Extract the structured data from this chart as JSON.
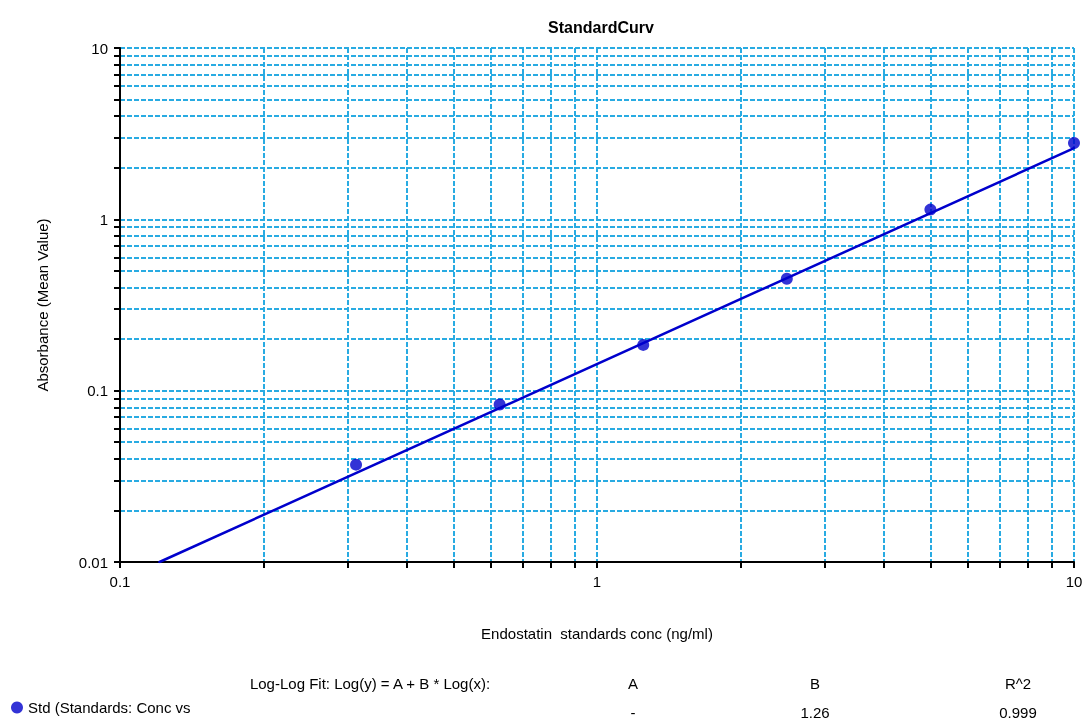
{
  "chart_data": {
    "type": "scatter",
    "title": "StandardCurv",
    "xlabel": "Endostatin  standards conc (ng/ml)",
    "ylabel": "Absorbance (Mean Value)",
    "x": [
      0.3125,
      0.625,
      1.25,
      2.5,
      5,
      10
    ],
    "series": [
      {
        "name": "Std (Standards: Conc vs",
        "type": "scatter",
        "color": "#0000cc",
        "values": [
          0.037,
          0.083,
          0.185,
          0.45,
          1.14,
          2.79
        ]
      },
      {
        "type": "line",
        "color": "#0000cc",
        "x": [
          0.121,
          10
        ],
        "values": [
          0.01,
          2.6
        ],
        "marker": "none"
      }
    ],
    "log": "xy",
    "xlim": [
      0.1,
      10
    ],
    "ylim": [
      0.01,
      10
    ],
    "xticks": [
      0.1,
      1,
      10
    ],
    "yticks": [
      0.01,
      0.1,
      1,
      10
    ],
    "grid": true,
    "legend": "bottom left",
    "marker": "circle",
    "annotations": [
      "Log-Log Fit: Log(y) = A + B * Log(x):",
      "A",
      "B",
      "R^2",
      "-",
      "1.26",
      "0.999"
    ]
  }
}
